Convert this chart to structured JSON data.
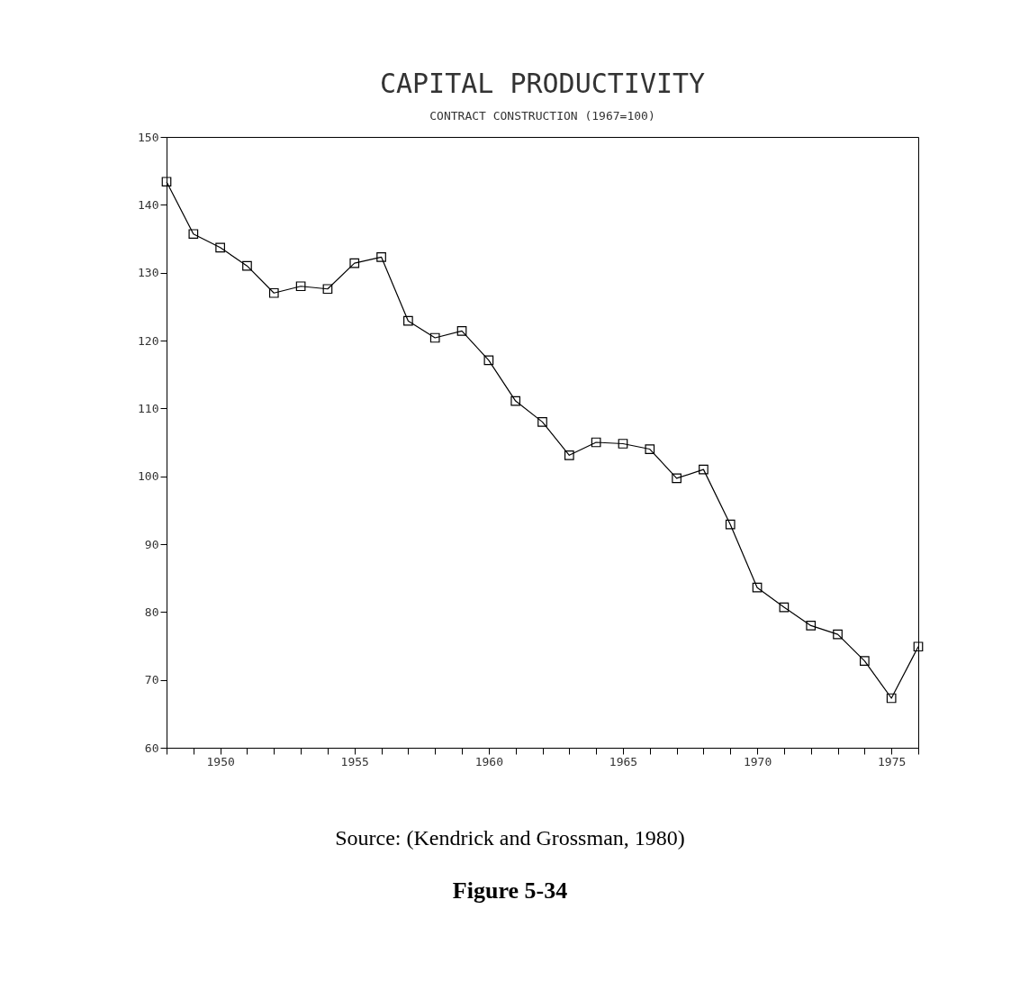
{
  "chart_data": {
    "type": "line",
    "title": "CAPITAL PRODUCTIVITY",
    "subtitle": "CONTRACT CONSTRUCTION (1967=100)",
    "x": [
      1948,
      1949,
      1950,
      1951,
      1952,
      1953,
      1954,
      1955,
      1956,
      1957,
      1958,
      1959,
      1960,
      1961,
      1962,
      1963,
      1964,
      1965,
      1966,
      1967,
      1968,
      1969,
      1970,
      1971,
      1972,
      1973,
      1974,
      1975,
      1976
    ],
    "series": [
      {
        "color": "#000000",
        "values": [
          143.4,
          135.7,
          133.7,
          131.0,
          127.0,
          128.0,
          127.6,
          131.4,
          132.3,
          122.9,
          120.4,
          121.4,
          117.1,
          111.1,
          108.0,
          103.1,
          105.0,
          104.8,
          104.0,
          99.7,
          101.0,
          92.9,
          83.6,
          80.7,
          78.0,
          76.7,
          72.8,
          67.3,
          74.9
        ]
      }
    ],
    "xlim": [
      1948,
      1976
    ],
    "xticks": [
      {
        "value": 1948,
        "label": null
      },
      {
        "value": 1949,
        "label": null
      },
      1950,
      {
        "value": 1951,
        "label": null
      },
      {
        "value": 1952,
        "label": null
      },
      {
        "value": 1953,
        "label": null
      },
      {
        "value": 1954,
        "label": null
      },
      1955,
      {
        "value": 1956,
        "label": null
      },
      {
        "value": 1957,
        "label": null
      },
      {
        "value": 1958,
        "label": null
      },
      {
        "value": 1959,
        "label": null
      },
      1960,
      {
        "value": 1961,
        "label": null
      },
      {
        "value": 1962,
        "label": null
      },
      {
        "value": 1963,
        "label": null
      },
      {
        "value": 1964,
        "label": null
      },
      1965,
      {
        "value": 1966,
        "label": null
      },
      {
        "value": 1967,
        "label": null
      },
      {
        "value": 1968,
        "label": null
      },
      {
        "value": 1969,
        "label": null
      },
      1970,
      {
        "value": 1971,
        "label": null
      },
      {
        "value": 1972,
        "label": null
      },
      {
        "value": 1973,
        "label": null
      },
      {
        "value": 1974,
        "label": null
      },
      1975,
      {
        "value": 1976,
        "label": null
      }
    ],
    "ylim": [
      60,
      150
    ],
    "yticks": [
      60,
      70,
      80,
      90,
      100,
      110,
      120,
      130,
      140,
      150
    ],
    "grid": false,
    "marker": "square",
    "line_style": "solid",
    "annotations": [
      "Source: (Kendrick and Grossman, 1980)",
      "Figure 5-34"
    ]
  }
}
